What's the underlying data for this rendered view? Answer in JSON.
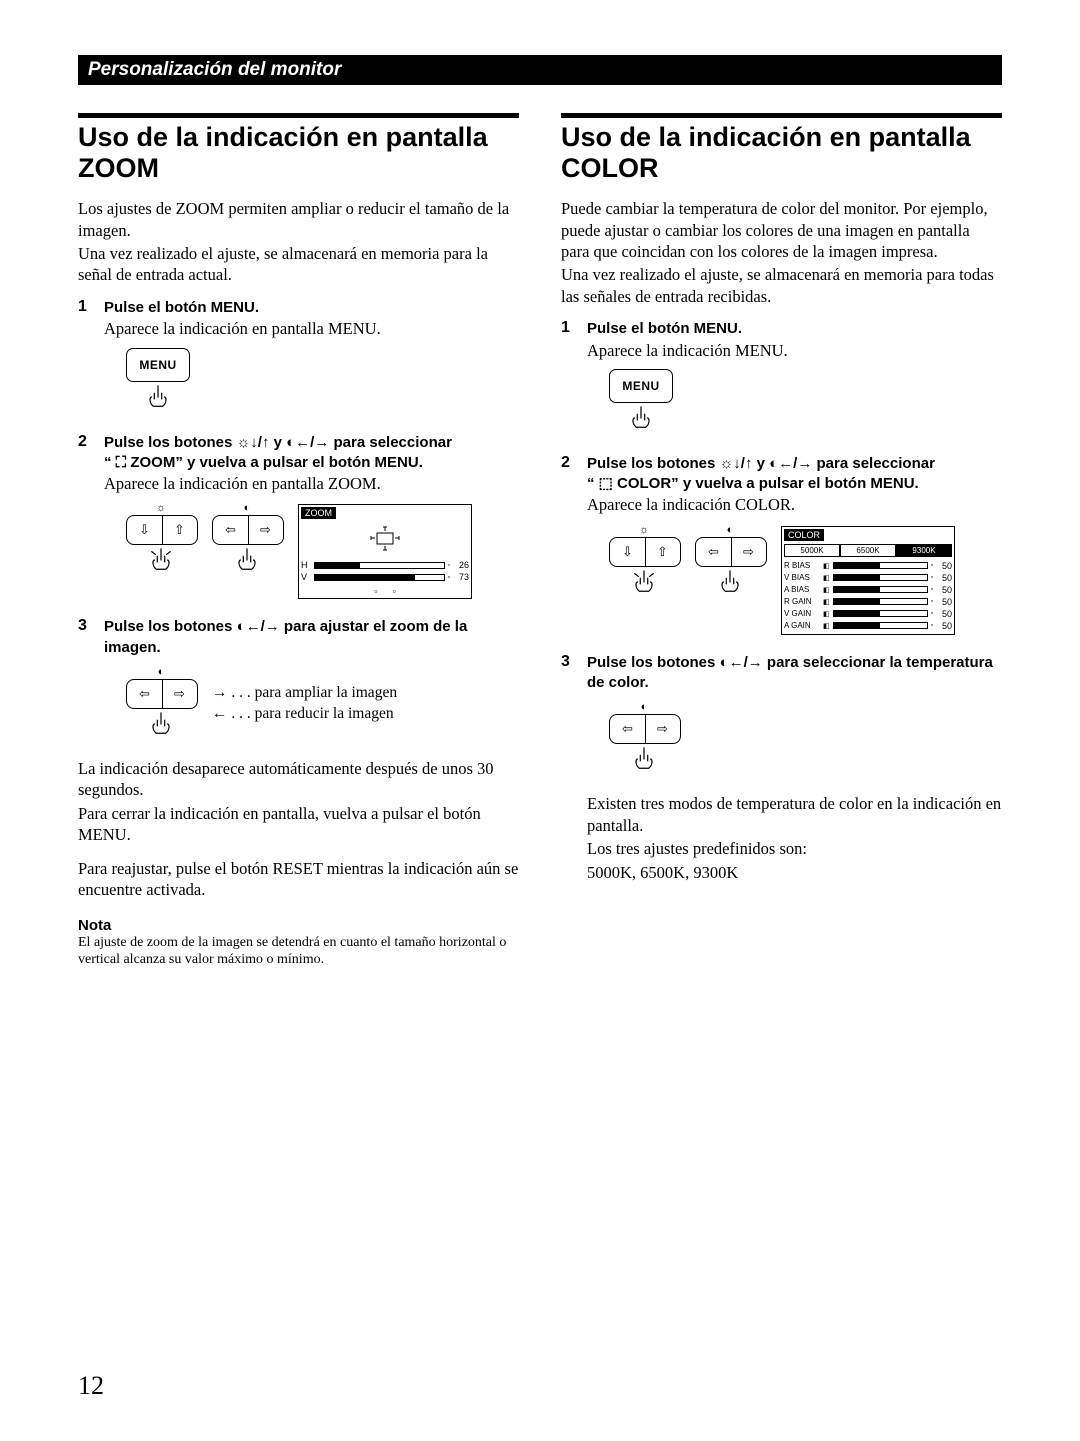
{
  "page_header": "Personalización del monitor",
  "page_number": "12",
  "left": {
    "title_line1": "Uso de la indicación en pantalla",
    "title_line2": "ZOOM",
    "intro1": "Los ajustes de ZOOM permiten ampliar o reducir el tamaño de la imagen.",
    "intro2": "Una vez realizado el ajuste, se almacenará en memoria para la señal de entrada actual.",
    "step1_title": "Pulse el botón MENU.",
    "step1_text": "Aparece la indicación en pantalla MENU.",
    "menu_label": "MENU",
    "step2_title_a": "Pulse los botones ☼↓/↑ y ◐←/→ para seleccionar",
    "step2_title_b": "“ ⛶  ZOOM” y vuelva a pulsar el botón MENU.",
    "step2_text": "Aparece la indicación en pantalla ZOOM.",
    "zoom_osd": {
      "title": "ZOOM",
      "rows": [
        {
          "label": "H",
          "fill": 35,
          "val": "26"
        },
        {
          "label": "V",
          "fill": 78,
          "val": "73"
        }
      ]
    },
    "step3_title": "Pulse los botones ◐←/→ para ajustar el zoom de la imagen.",
    "arrow_r": "→ . . . para ampliar la imagen",
    "arrow_l": "← . . . para reducir la imagen",
    "para1": "La indicación desaparece automáticamente después de unos 30 segundos.",
    "para2": "Para cerrar la indicación en pantalla, vuelva a pulsar el botón MENU.",
    "para3": "Para reajustar, pulse el botón RESET mientras la indicación aún se encuentre activada.",
    "note_title": "Nota",
    "note_text": "El ajuste de zoom de la imagen se detendrá en cuanto el tamaño horizontal o vertical alcanza su valor máximo o mínimo."
  },
  "right": {
    "title_line1": "Uso de la indicación en pantalla",
    "title_line2": "COLOR",
    "intro1": "Puede cambiar la temperatura de color del monitor. Por ejemplo, puede ajustar o cambiar los colores de una imagen en pantalla para que coincidan con los colores de la imagen impresa.",
    "intro2": "Una vez realizado el ajuste, se almacenará en memoria para todas las señales de entrada recibidas.",
    "step1_title": "Pulse el botón MENU.",
    "step1_text": "Aparece la indicación MENU.",
    "menu_label": "MENU",
    "step2_title_a": "Pulse los botones ☼↓/↑ y ◐←/→ para seleccionar",
    "step2_title_b": "“ ⬚  COLOR” y vuelva a pulsar el botón MENU.",
    "step2_text": "Aparece la indicación COLOR.",
    "color_osd": {
      "title": "COLOR",
      "tabs": [
        "5000K",
        "6500K",
        "9300K"
      ],
      "active_tab": 2,
      "rows": [
        {
          "label": "R  BIAS",
          "fill": 50,
          "val": "50"
        },
        {
          "label": "V  BIAS",
          "fill": 50,
          "val": "50"
        },
        {
          "label": "A  BIAS",
          "fill": 50,
          "val": "50"
        },
        {
          "label": "R  GAIN",
          "fill": 50,
          "val": "50"
        },
        {
          "label": "V  GAIN",
          "fill": 50,
          "val": "50"
        },
        {
          "label": "A  GAIN",
          "fill": 50,
          "val": "50"
        }
      ]
    },
    "step3_title": "Pulse los botones ◐←/→ para seleccionar la temperatura de color.",
    "para1": "Existen tres modos de temperatura de color en la indicación en pantalla.",
    "para2": "Los tres ajustes predefinidos son:",
    "para3": "5000K, 6500K, 9300K"
  }
}
